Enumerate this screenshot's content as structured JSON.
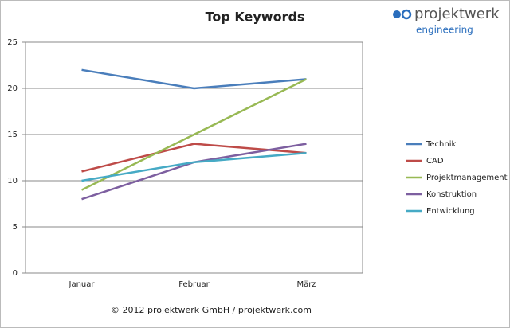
{
  "chart_data": {
    "type": "line",
    "title": "Top Keywords",
    "categories": [
      "Januar",
      "Februar",
      "März"
    ],
    "series": [
      {
        "name": "Technik",
        "color": "#4a7ebb",
        "values": [
          22,
          20,
          21
        ]
      },
      {
        "name": "CAD",
        "color": "#be4b48",
        "values": [
          11,
          14,
          13
        ]
      },
      {
        "name": "Projektmanagement",
        "color": "#98b954",
        "values": [
          9,
          15,
          21
        ]
      },
      {
        "name": "Konstruktion",
        "color": "#7d5fa0",
        "values": [
          8,
          12,
          14
        ]
      },
      {
        "name": "Entwicklung",
        "color": "#46aac5",
        "values": [
          10,
          12,
          13
        ]
      }
    ],
    "ylim": [
      0,
      25
    ],
    "yticks": [
      0,
      5,
      10,
      15,
      20,
      25
    ],
    "grid": true,
    "legend": "right"
  },
  "logo": {
    "name": "projektwerk",
    "tagline": "engineering"
  },
  "footer": "© 2012 projektwerk GmbH / projektwerk.com"
}
